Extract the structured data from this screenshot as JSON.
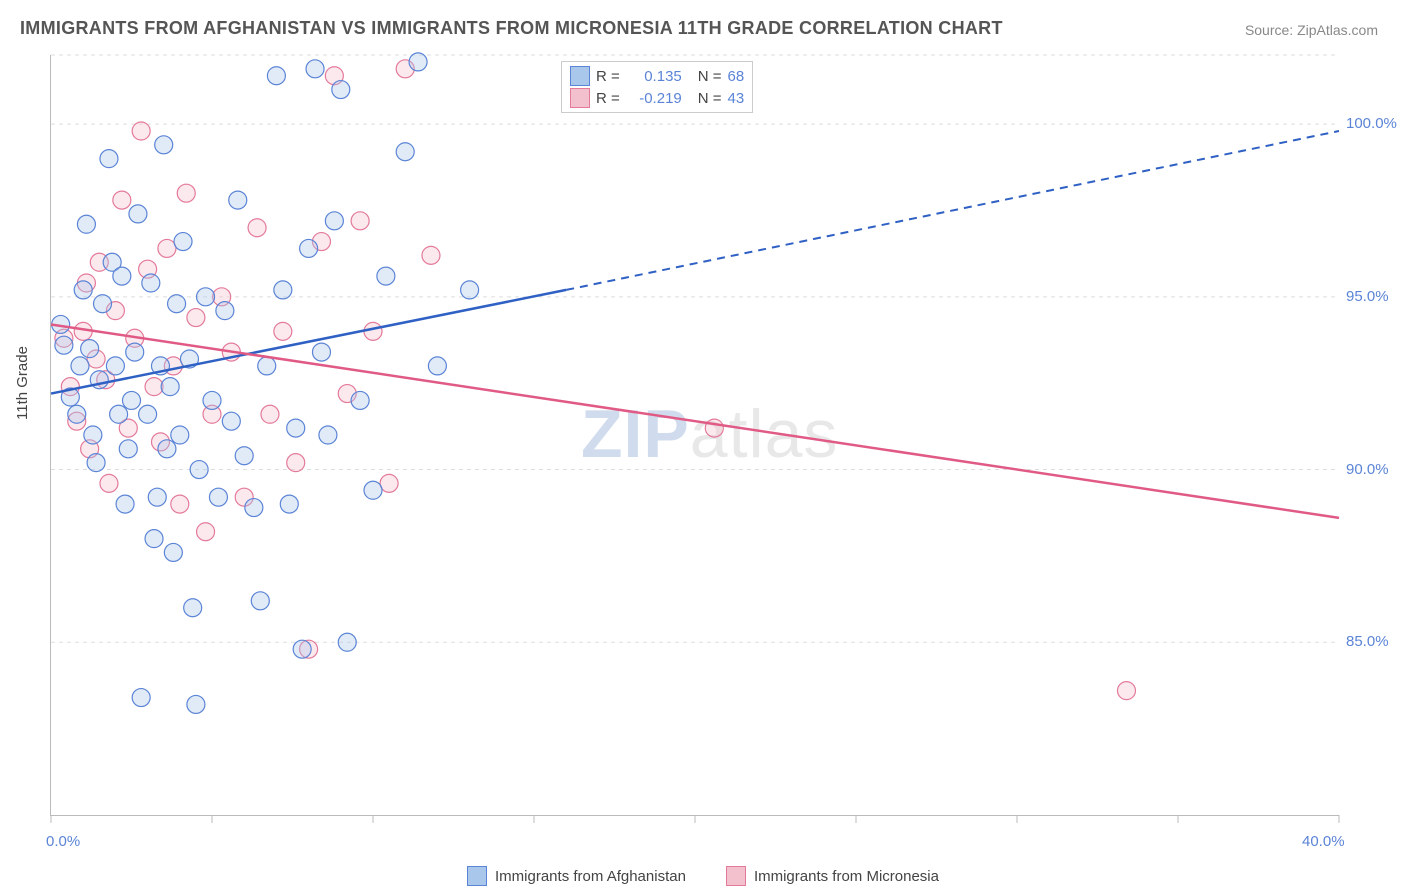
{
  "title": "IMMIGRANTS FROM AFGHANISTAN VS IMMIGRANTS FROM MICRONESIA 11TH GRADE CORRELATION CHART",
  "source": "Source: ZipAtlas.com",
  "ylabel": "11th Grade",
  "watermark": {
    "left": "ZIP",
    "right": "atlas"
  },
  "chart": {
    "type": "scatter",
    "xlim": [
      0,
      40
    ],
    "ylim": [
      80,
      102
    ],
    "xtick_positions": [
      0,
      5,
      10,
      15,
      20,
      25,
      30,
      35,
      40
    ],
    "xtick_labels": {
      "0": "0.0%",
      "40": "40.0%"
    },
    "ytick_positions": [
      85,
      90,
      95,
      100
    ],
    "ytick_labels": [
      "85.0%",
      "90.0%",
      "95.0%",
      "100.0%"
    ],
    "grid_y": [
      85,
      90,
      95,
      100,
      102
    ],
    "background": "#ffffff",
    "grid_color": "#dddddd",
    "series": [
      {
        "name": "Immigrants from Afghanistan",
        "color_fill": "#a9c7ea",
        "color_stroke": "#5b84d6",
        "R": "0.135",
        "N": "68",
        "trend": {
          "solid": {
            "x1": 0,
            "y1": 92.2,
            "x2": 16,
            "y2": 95.2
          },
          "dashed": {
            "x1": 16,
            "y1": 95.2,
            "x2": 40,
            "y2": 99.8
          },
          "color": "#2f60c4"
        },
        "points": [
          [
            0.3,
            94.2
          ],
          [
            0.4,
            93.6
          ],
          [
            0.6,
            92.1
          ],
          [
            0.8,
            91.6
          ],
          [
            0.9,
            93.0
          ],
          [
            1.0,
            95.2
          ],
          [
            1.1,
            97.1
          ],
          [
            1.2,
            93.5
          ],
          [
            1.3,
            91.0
          ],
          [
            1.4,
            90.2
          ],
          [
            1.5,
            92.6
          ],
          [
            1.6,
            94.8
          ],
          [
            1.8,
            99.0
          ],
          [
            1.9,
            96.0
          ],
          [
            2.0,
            93.0
          ],
          [
            2.1,
            91.6
          ],
          [
            2.2,
            95.6
          ],
          [
            2.3,
            89.0
          ],
          [
            2.4,
            90.6
          ],
          [
            2.5,
            92.0
          ],
          [
            2.6,
            93.4
          ],
          [
            2.7,
            97.4
          ],
          [
            2.8,
            83.4
          ],
          [
            3.0,
            91.6
          ],
          [
            3.1,
            95.4
          ],
          [
            3.2,
            88.0
          ],
          [
            3.3,
            89.2
          ],
          [
            3.4,
            93.0
          ],
          [
            3.5,
            99.4
          ],
          [
            3.6,
            90.6
          ],
          [
            3.7,
            92.4
          ],
          [
            3.8,
            87.6
          ],
          [
            3.9,
            94.8
          ],
          [
            4.0,
            91.0
          ],
          [
            4.1,
            96.6
          ],
          [
            4.3,
            93.2
          ],
          [
            4.4,
            86.0
          ],
          [
            4.5,
            83.2
          ],
          [
            4.6,
            90.0
          ],
          [
            4.8,
            95.0
          ],
          [
            5.0,
            92.0
          ],
          [
            5.2,
            89.2
          ],
          [
            5.4,
            94.6
          ],
          [
            5.6,
            91.4
          ],
          [
            5.8,
            97.8
          ],
          [
            6.0,
            90.4
          ],
          [
            6.3,
            88.9
          ],
          [
            6.5,
            86.2
          ],
          [
            6.7,
            93.0
          ],
          [
            7.0,
            101.4
          ],
          [
            7.2,
            95.2
          ],
          [
            7.4,
            89.0
          ],
          [
            7.6,
            91.2
          ],
          [
            7.8,
            84.8
          ],
          [
            8.0,
            96.4
          ],
          [
            8.2,
            101.6
          ],
          [
            8.4,
            93.4
          ],
          [
            8.6,
            91.0
          ],
          [
            8.8,
            97.2
          ],
          [
            9.0,
            101.0
          ],
          [
            9.2,
            85.0
          ],
          [
            9.6,
            92.0
          ],
          [
            10.0,
            89.4
          ],
          [
            10.4,
            95.6
          ],
          [
            11.0,
            99.2
          ],
          [
            11.4,
            101.8
          ],
          [
            12.0,
            93.0
          ],
          [
            13.0,
            95.2
          ]
        ]
      },
      {
        "name": "Immigrants from Micronesia",
        "color_fill": "#f3c0cd",
        "color_stroke": "#e47a9a",
        "R": "-0.219",
        "N": "43",
        "trend": {
          "solid": {
            "x1": 0,
            "y1": 94.2,
            "x2": 40,
            "y2": 88.6
          },
          "color": "#e05a85"
        },
        "points": [
          [
            0.4,
            93.8
          ],
          [
            0.6,
            92.4
          ],
          [
            0.8,
            91.4
          ],
          [
            1.0,
            94.0
          ],
          [
            1.1,
            95.4
          ],
          [
            1.2,
            90.6
          ],
          [
            1.4,
            93.2
          ],
          [
            1.5,
            96.0
          ],
          [
            1.7,
            92.6
          ],
          [
            1.8,
            89.6
          ],
          [
            2.0,
            94.6
          ],
          [
            2.2,
            97.8
          ],
          [
            2.4,
            91.2
          ],
          [
            2.6,
            93.8
          ],
          [
            2.8,
            99.8
          ],
          [
            3.0,
            95.8
          ],
          [
            3.2,
            92.4
          ],
          [
            3.4,
            90.8
          ],
          [
            3.6,
            96.4
          ],
          [
            3.8,
            93.0
          ],
          [
            4.0,
            89.0
          ],
          [
            4.2,
            98.0
          ],
          [
            4.5,
            94.4
          ],
          [
            4.8,
            88.2
          ],
          [
            5.0,
            91.6
          ],
          [
            5.3,
            95.0
          ],
          [
            5.6,
            93.4
          ],
          [
            6.0,
            89.2
          ],
          [
            6.4,
            97.0
          ],
          [
            6.8,
            91.6
          ],
          [
            7.2,
            94.0
          ],
          [
            7.6,
            90.2
          ],
          [
            8.0,
            84.8
          ],
          [
            8.4,
            96.6
          ],
          [
            8.8,
            101.4
          ],
          [
            9.2,
            92.2
          ],
          [
            9.6,
            97.2
          ],
          [
            10.0,
            94.0
          ],
          [
            10.5,
            89.6
          ],
          [
            11.0,
            101.6
          ],
          [
            11.8,
            96.2
          ],
          [
            20.6,
            91.2
          ],
          [
            33.4,
            83.6
          ]
        ]
      }
    ]
  },
  "legend_top": {
    "R_label": "R =",
    "N_label": "N ="
  },
  "legend_bottom": [
    {
      "label": "Immigrants from Afghanistan",
      "fill": "#a9c7ea",
      "stroke": "#5b84d6"
    },
    {
      "label": "Immigrants from Micronesia",
      "fill": "#f3c0cd",
      "stroke": "#e47a9a"
    }
  ]
}
